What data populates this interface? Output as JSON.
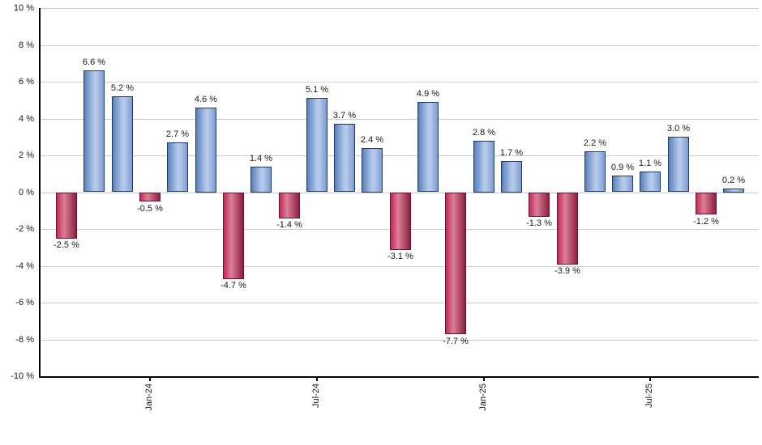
{
  "chart_data": {
    "type": "bar",
    "title": "",
    "xlabel": "",
    "ylabel": "",
    "ylim": [
      -10,
      10
    ],
    "grid": true,
    "legend_position": "none",
    "values": [
      -2.5,
      6.6,
      5.2,
      -0.5,
      2.7,
      4.6,
      -4.7,
      1.4,
      -1.4,
      5.1,
      3.7,
      2.4,
      -3.1,
      4.9,
      -7.7,
      2.8,
      1.7,
      -1.3,
      -3.9,
      2.2,
      0.9,
      1.1,
      3.0,
      -1.2,
      0.2
    ],
    "bar_labels": [
      "-2.5 %",
      "6.6 %",
      "5.2 %",
      "-0.5 %",
      "2.7 %",
      "4.6 %",
      "-4.7 %",
      "1.4 %",
      "-1.4 %",
      "5.1 %",
      "3.7 %",
      "2.4 %",
      "-3.1 %",
      "4.9 %",
      "-7.7 %",
      "2.8 %",
      "1.7 %",
      "-1.3 %",
      "-3.9 %",
      "2.2 %",
      "0.9 %",
      "1.1 %",
      "3.0 %",
      "-1.2 %",
      "0.2 %"
    ],
    "x_ticks": [
      {
        "index": 3,
        "label": "Jan-24"
      },
      {
        "index": 9,
        "label": "Jul-24"
      },
      {
        "index": 15,
        "label": "Jan-25"
      },
      {
        "index": 21,
        "label": "Jul-25"
      }
    ],
    "y_ticks": [
      {
        "value": 10,
        "label": "10 %"
      },
      {
        "value": 8,
        "label": "8 %"
      },
      {
        "value": 6,
        "label": "6 %"
      },
      {
        "value": 4,
        "label": "4 %"
      },
      {
        "value": 2,
        "label": "2 %"
      },
      {
        "value": 0,
        "label": "0 %"
      },
      {
        "value": -2,
        "label": "-2 %"
      },
      {
        "value": -4,
        "label": "-4 %"
      },
      {
        "value": -6,
        "label": "-6 %"
      },
      {
        "value": -8,
        "label": "-8 %"
      },
      {
        "value": -10,
        "label": "-10 %"
      }
    ],
    "colors": {
      "positive_fill_stops": [
        "#5b7fba",
        "#b9cdec",
        "#7e9cd2"
      ],
      "positive_border": "#1e3a66",
      "negative_fill_stops": [
        "#c42757",
        "#da8099",
        "#8c1f3e"
      ],
      "negative_border": "#6d142f",
      "gridline": "#cccccc",
      "axis": "#000000",
      "label_text": "#1a1a1a"
    }
  }
}
